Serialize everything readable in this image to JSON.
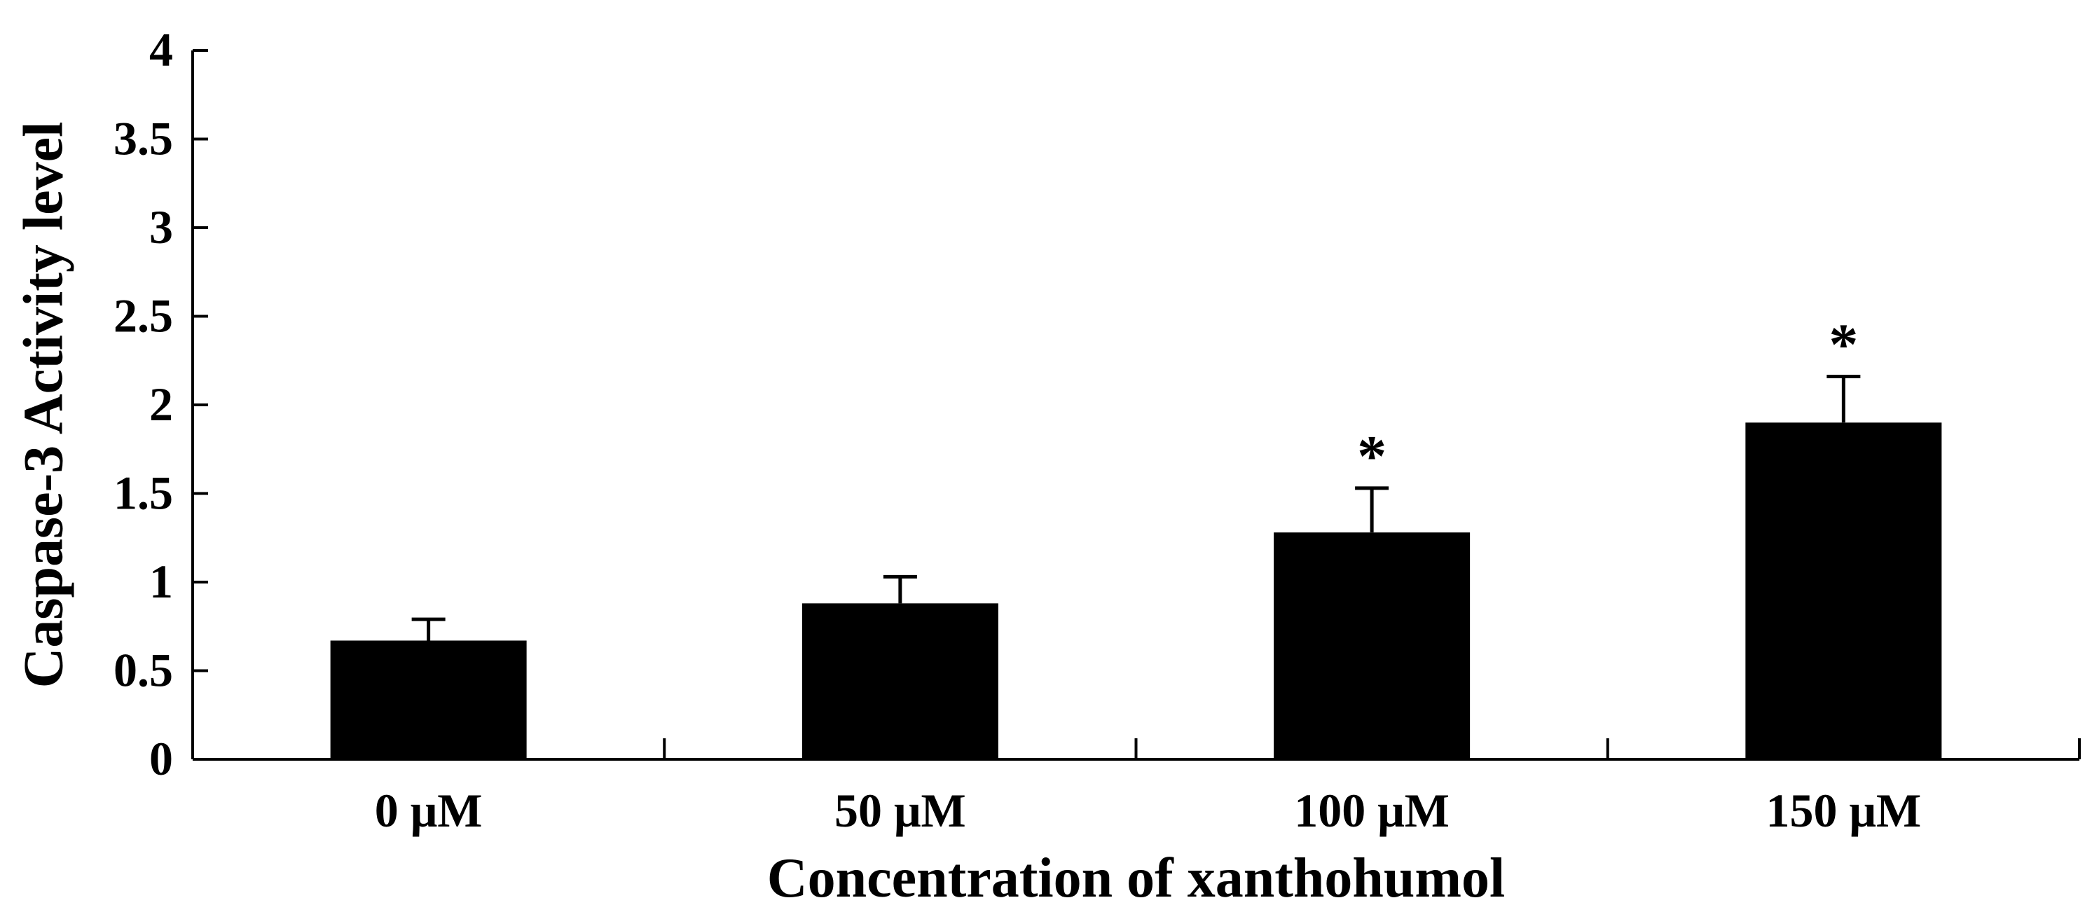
{
  "chart_data": {
    "type": "bar",
    "title": "",
    "xlabel": "Concentration of xanthohumol",
    "ylabel": "Caspase-3 Activity level",
    "categories": [
      "0 μM",
      "50 μM",
      "100 μM",
      "150 μM"
    ],
    "values": [
      0.67,
      0.88,
      1.28,
      1.9
    ],
    "error_bars": [
      0.12,
      0.15,
      0.25,
      0.26
    ],
    "annotations": [
      "",
      "",
      "*",
      "*"
    ],
    "ylim": [
      0,
      4
    ],
    "yticks": [
      0,
      0.5,
      1,
      1.5,
      2,
      2.5,
      3,
      3.5,
      4
    ],
    "ytick_labels": [
      "0",
      "0.5",
      "1",
      "1.5",
      "2",
      "2.5",
      "3",
      "3.5",
      "4"
    ],
    "grid": false,
    "legend": "none",
    "bar_color": "#000000"
  }
}
